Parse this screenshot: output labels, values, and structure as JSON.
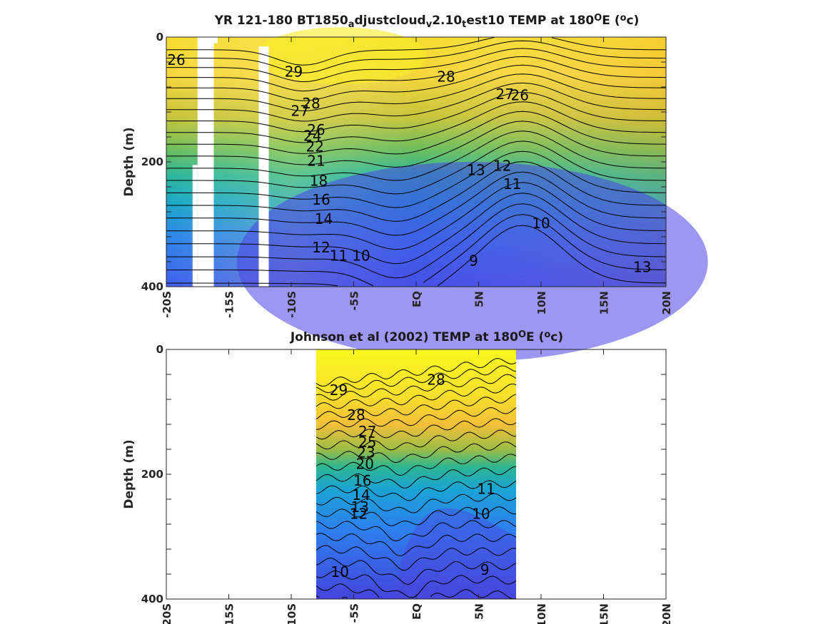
{
  "chart_data": [
    {
      "type": "contour",
      "title_parts": [
        "YR 121-180 BT1850",
        "a",
        "djustcloud",
        "v",
        "2.10",
        "t",
        "est10 TEMP at 180",
        "O",
        "E (",
        "o",
        "c)"
      ],
      "ylabel": "Depth (m)",
      "xlim": [
        -20,
        20
      ],
      "ylim": [
        0,
        400
      ],
      "y_reversed": true,
      "xticks": [
        -20,
        -15,
        -10,
        -5,
        0,
        5,
        10,
        15,
        20
      ],
      "xtick_labels": [
        "-20S",
        "-15S",
        "-10S",
        "-5S",
        "EQ",
        "5N",
        "10N",
        "15N",
        "20N"
      ],
      "yticks": [
        0,
        200,
        400
      ],
      "ytick_labels": [
        "0",
        "200",
        "400"
      ],
      "colormap": "parula",
      "color_range": [
        8,
        30
      ],
      "data_extent_x": [
        -20,
        20
      ],
      "masked_columns": [
        {
          "x": [
            -17.5,
            -16.2
          ],
          "y": [
            0,
            400
          ]
        },
        {
          "x": [
            -17.9,
            -17.5
          ],
          "y": [
            205,
            400
          ]
        },
        {
          "x": [
            -12.6,
            -11.8
          ],
          "y": [
            15,
            400
          ]
        },
        {
          "x": [
            -17.0,
            -15.9
          ],
          "y": [
            0,
            10
          ]
        }
      ],
      "contour_levels": [
        9,
        10,
        11,
        12,
        13,
        14,
        15,
        16,
        17,
        18,
        19,
        20,
        21,
        22,
        23,
        24,
        25,
        26,
        27,
        28,
        29
      ],
      "contour_labels": [
        {
          "text": "26",
          "x": -19.2,
          "y": 38
        },
        {
          "text": "29",
          "x": -9.8,
          "y": 57
        },
        {
          "text": "28",
          "x": 2.4,
          "y": 65
        },
        {
          "text": "28",
          "x": -8.4,
          "y": 108
        },
        {
          "text": "27",
          "x": -9.3,
          "y": 120
        },
        {
          "text": "27",
          "x": 7.1,
          "y": 93
        },
        {
          "text": "26",
          "x": 8.3,
          "y": 95
        },
        {
          "text": "26",
          "x": -8.0,
          "y": 150
        },
        {
          "text": "24",
          "x": -8.3,
          "y": 160
        },
        {
          "text": "22",
          "x": -8.1,
          "y": 177
        },
        {
          "text": "21",
          "x": -8.0,
          "y": 200
        },
        {
          "text": "18",
          "x": -7.8,
          "y": 232
        },
        {
          "text": "16",
          "x": -7.6,
          "y": 262
        },
        {
          "text": "14",
          "x": -7.4,
          "y": 293
        },
        {
          "text": "13",
          "x": 4.8,
          "y": 215
        },
        {
          "text": "12",
          "x": 6.9,
          "y": 208
        },
        {
          "text": "11",
          "x": 7.7,
          "y": 237
        },
        {
          "text": "10",
          "x": 10.0,
          "y": 300
        },
        {
          "text": "12",
          "x": -7.6,
          "y": 339
        },
        {
          "text": "11",
          "x": -6.2,
          "y": 352
        },
        {
          "text": "10",
          "x": -4.4,
          "y": 352
        },
        {
          "text": "9",
          "x": 4.6,
          "y": 360
        },
        {
          "text": "13",
          "x": 18.1,
          "y": 370
        }
      ]
    },
    {
      "type": "contour",
      "title_parts": [
        "Johnson et al (2002) TEMP at 180",
        "O",
        "E (",
        "o",
        "c)"
      ],
      "ylabel": "Depth (m)",
      "xlim": [
        -20,
        20
      ],
      "ylim": [
        0,
        400
      ],
      "y_reversed": true,
      "xticks": [
        -20,
        -15,
        -10,
        -5,
        0,
        5,
        10,
        15,
        20
      ],
      "xtick_labels": [
        "-20S",
        "-15S",
        "-10S",
        "-5S",
        "EQ",
        "5N",
        "10N",
        "15N",
        "20N"
      ],
      "yticks": [
        0,
        200,
        400
      ],
      "ytick_labels": [
        "0",
        "200",
        "400"
      ],
      "colormap": "parula",
      "color_range": [
        8,
        30
      ],
      "data_extent_x": [
        -8,
        8
      ],
      "contour_levels": [
        9,
        10,
        11,
        12,
        13,
        14,
        15,
        16,
        17,
        18,
        19,
        20,
        21,
        22,
        23,
        24,
        25,
        26,
        27,
        28,
        29
      ],
      "contour_labels": [
        {
          "text": "29",
          "x": -6.2,
          "y": 67
        },
        {
          "text": "28",
          "x": 1.6,
          "y": 50
        },
        {
          "text": "28",
          "x": -4.8,
          "y": 107
        },
        {
          "text": "27",
          "x": -3.9,
          "y": 133
        },
        {
          "text": "25",
          "x": -3.9,
          "y": 150
        },
        {
          "text": "23",
          "x": -4.0,
          "y": 167
        },
        {
          "text": "20",
          "x": -4.1,
          "y": 185
        },
        {
          "text": "16",
          "x": -4.3,
          "y": 212
        },
        {
          "text": "14",
          "x": -4.4,
          "y": 235
        },
        {
          "text": "13",
          "x": -4.5,
          "y": 254
        },
        {
          "text": "12",
          "x": -4.6,
          "y": 265
        },
        {
          "text": "11",
          "x": 5.6,
          "y": 225
        },
        {
          "text": "10",
          "x": 5.2,
          "y": 265
        },
        {
          "text": "10",
          "x": -6.1,
          "y": 358
        },
        {
          "text": "9",
          "x": 5.5,
          "y": 355
        }
      ]
    }
  ]
}
